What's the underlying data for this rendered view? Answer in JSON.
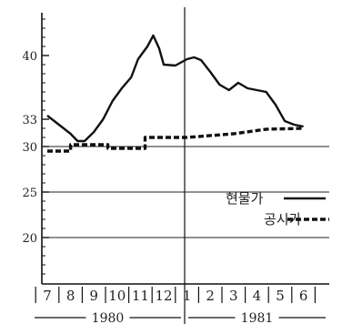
{
  "chart_data": {
    "type": "line",
    "title": "",
    "xlabel": "",
    "ylabel": "",
    "ylim": [
      10,
      48
    ],
    "y_ticks": [
      "20",
      "25",
      "30",
      "33",
      "40"
    ],
    "categories": [
      "7",
      "8",
      "9",
      "10",
      "11",
      "12",
      "1",
      "2",
      "3",
      "4",
      "5",
      "6"
    ],
    "years": [
      "1980",
      "1981"
    ],
    "grid": "horizontal",
    "legend_position": "right",
    "series": [
      {
        "name": "현물가",
        "style": "solid",
        "color": "#111111",
        "points": [
          [
            0.0,
            33.4
          ],
          [
            0.5,
            32.4
          ],
          [
            1.0,
            31.4
          ],
          [
            1.3,
            30.6
          ],
          [
            1.6,
            30.6
          ],
          [
            2.0,
            31.6
          ],
          [
            2.4,
            33.0
          ],
          [
            2.8,
            35.0
          ],
          [
            3.2,
            36.4
          ],
          [
            3.6,
            37.6
          ],
          [
            3.9,
            39.6
          ],
          [
            4.3,
            41.0
          ],
          [
            4.55,
            42.2
          ],
          [
            4.8,
            40.8
          ],
          [
            5.0,
            39.0
          ],
          [
            5.5,
            38.9
          ],
          [
            6.0,
            39.6
          ],
          [
            6.3,
            39.8
          ],
          [
            6.6,
            39.5
          ],
          [
            7.0,
            38.2
          ],
          [
            7.4,
            36.8
          ],
          [
            7.8,
            36.2
          ],
          [
            8.2,
            37.0
          ],
          [
            8.6,
            36.4
          ],
          [
            9.0,
            36.2
          ],
          [
            9.4,
            36.0
          ],
          [
            9.8,
            34.6
          ],
          [
            10.2,
            32.8
          ],
          [
            10.6,
            32.4
          ],
          [
            11.0,
            32.2
          ]
        ]
      },
      {
        "name": "공시가",
        "style": "dashed",
        "color": "#111111",
        "points": [
          [
            0.0,
            29.5
          ],
          [
            1.0,
            29.5
          ],
          [
            1.0,
            30.2
          ],
          [
            2.6,
            30.2
          ],
          [
            2.6,
            29.8
          ],
          [
            4.2,
            29.8
          ],
          [
            4.2,
            31.0
          ],
          [
            6.0,
            31.0
          ],
          [
            8.0,
            31.4
          ],
          [
            9.4,
            31.9
          ],
          [
            11.0,
            32.0
          ]
        ]
      }
    ]
  }
}
